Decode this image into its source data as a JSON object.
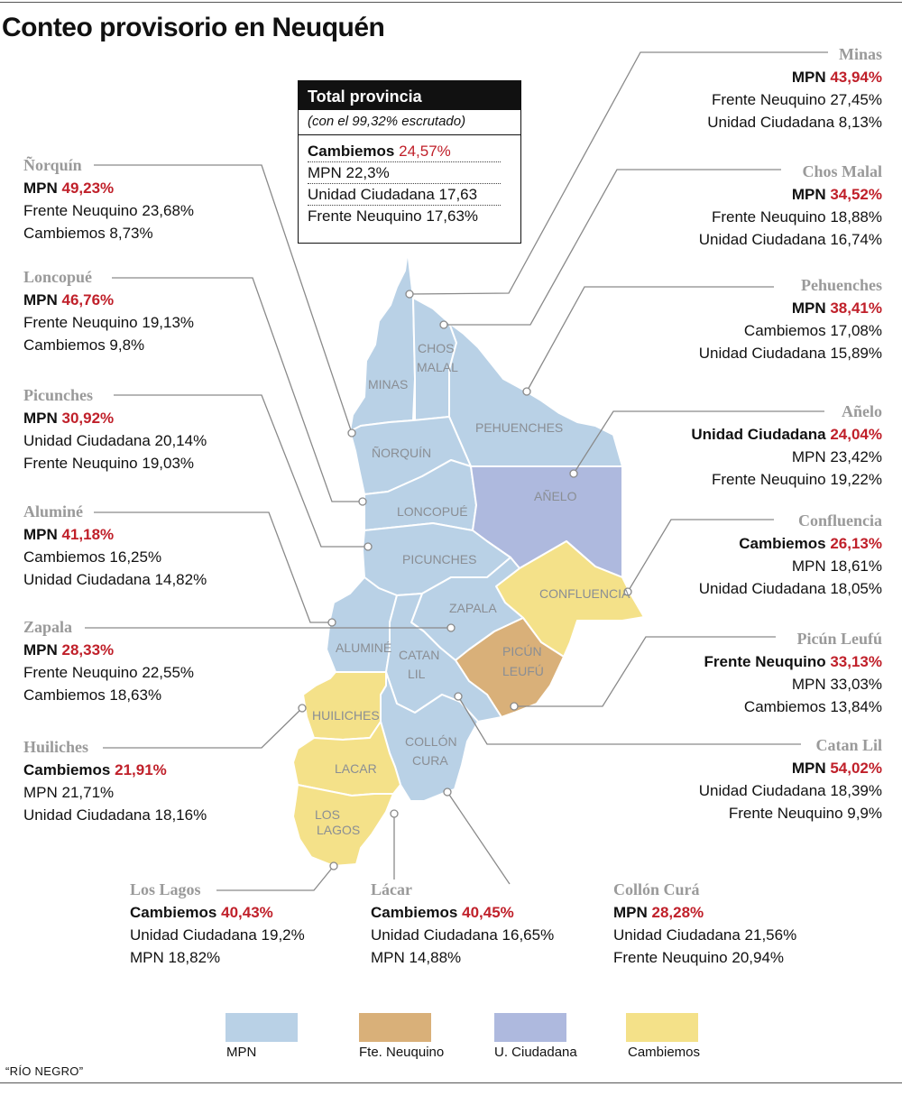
{
  "title": "Conteo provisorio en Neuquén",
  "colors": {
    "mpn": "#b9d1e6",
    "fte": "#d9b079",
    "uc": "#aeb9de",
    "cambiemos": "#f4e189",
    "winner_pct": "#c0202a",
    "district_name": "#9a9a9a"
  },
  "total": {
    "heading": "Total provincia",
    "sub": "(con el 99,32% escrutado)",
    "rows": [
      {
        "party": "Cambiemos",
        "pct": "24,57%"
      },
      {
        "text": "MPN 22,3%"
      },
      {
        "text": "Unidad Ciudadana 17,63"
      },
      {
        "text": "Frente Neuquino 17,63%"
      }
    ]
  },
  "districts": {
    "norquin": {
      "name": "Ñorquín",
      "map": "ÑORQUÍN",
      "win": "MPN",
      "pct": "49,23%",
      "r2": "Frente Neuquino 23,68%",
      "r3": "Cambiemos 8,73%"
    },
    "loncopue": {
      "name": "Loncopué",
      "map": "LONCOPUÉ",
      "win": "MPN",
      "pct": "46,76%",
      "r2": "Frente Neuquino 19,13%",
      "r3": "Cambiemos 9,8%"
    },
    "picunches": {
      "name": "Picunches",
      "map": "PICUNCHES",
      "win": "MPN",
      "pct": "30,92%",
      "r2": "Unidad Ciudadana 20,14%",
      "r3": "Frente Neuquino 19,03%"
    },
    "alumine": {
      "name": "Aluminé",
      "map": "ALUMINÉ",
      "win": "MPN",
      "pct": "41,18%",
      "r2": "Cambiemos 16,25%",
      "r3": "Unidad Ciudadana 14,82%"
    },
    "zapala": {
      "name": "Zapala",
      "map": "ZAPALA",
      "win": "MPN",
      "pct": "28,33%",
      "r2": "Frente Neuquino 22,55%",
      "r3": "Cambiemos 18,63%"
    },
    "huiliches": {
      "name": "Huiliches",
      "map": "HUILICHES",
      "win": "Cambiemos",
      "pct": "21,91%",
      "r2": "MPN 21,71%",
      "r3": "Unidad Ciudadana 18,16%"
    },
    "loslagos": {
      "name": "Los Lagos",
      "map1": "LOS",
      "map2": "LAGOS",
      "win": "Cambiemos",
      "pct": "40,43%",
      "r2": "Unidad Ciudadana 19,2%",
      "r3": "MPN 18,82%"
    },
    "lacar": {
      "name": "Lácar",
      "map": "LACAR",
      "win": "Cambiemos",
      "pct": "40,45%",
      "r2": "Unidad Ciudadana 16,65%",
      "r3": "MPN 14,88%"
    },
    "colloncura": {
      "name": "Collón Curá",
      "map1": "COLLÓN",
      "map2": "CURA",
      "win": "MPN",
      "pct": "28,28%",
      "r2": "Unidad Ciudadana 21,56%",
      "r3": "Frente Neuquino 20,94%"
    },
    "minas": {
      "name": "Minas",
      "map": "MINAS",
      "win": "MPN",
      "pct": "43,94%",
      "r2": "Frente Neuquino 27,45%",
      "r3": "Unidad Ciudadana 8,13%"
    },
    "choschmalal": {
      "name": "Chos Malal",
      "map1": "CHOS",
      "map2": "MALAL",
      "win": "MPN",
      "pct": "34,52%",
      "r2": "Frente Neuquino 18,88%",
      "r3": "Unidad Ciudadana 16,74%"
    },
    "pehuenches": {
      "name": "Pehuenches",
      "map": "PEHUENCHES",
      "win": "MPN",
      "pct": "38,41%",
      "r2": "Cambiemos 17,08%",
      "r3": "Unidad Ciudadana 15,89%"
    },
    "anelo": {
      "name": "Añelo",
      "map": "AÑELO",
      "win": "Unidad Ciudadana",
      "pct": "24,04%",
      "r2": "MPN 23,42%",
      "r3": "Frente Neuquino 19,22%"
    },
    "confluencia": {
      "name": "Confluencia",
      "map": "CONFLUENCIA",
      "win": "Cambiemos",
      "pct": "26,13%",
      "r2": "MPN 18,61%",
      "r3": "Unidad Ciudadana 18,05%"
    },
    "picunleufu": {
      "name": "Picún Leufú",
      "map1": "PICÚN",
      "map2": "LEUFÚ",
      "win": "Frente Neuquino",
      "pct": "33,13%",
      "r2": "MPN 33,03%",
      "r3": "Cambiemos 13,84%"
    },
    "catanlil": {
      "name": "Catan Lil",
      "map1": "CATAN",
      "map2": "LIL",
      "win": "MPN",
      "pct": "54,02%",
      "r2": "Unidad Ciudadana 18,39%",
      "r3": "Frente Neuquino 9,9%"
    }
  },
  "legend": [
    {
      "label": "MPN"
    },
    {
      "label": "Fte. Neuquino"
    },
    {
      "label": "U. Ciudadana"
    },
    {
      "label": "Cambiemos"
    }
  ],
  "credit": "“RÍO NEGRO”"
}
